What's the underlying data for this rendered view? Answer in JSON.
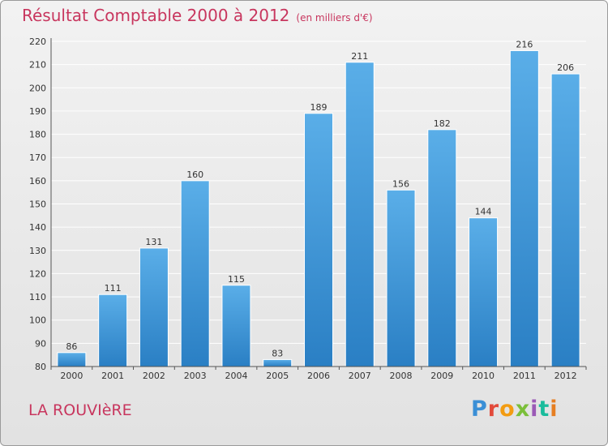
{
  "chart_data": {
    "type": "bar",
    "title": "Résultat Comptable 2000 à 2012",
    "unit_label": "(en milliers d'€)",
    "categories": [
      "2000",
      "2001",
      "2002",
      "2003",
      "2004",
      "2005",
      "2006",
      "2007",
      "2008",
      "2009",
      "2010",
      "2011",
      "2012"
    ],
    "values": [
      86,
      111,
      131,
      160,
      115,
      83,
      189,
      211,
      156,
      182,
      144,
      216,
      206
    ],
    "ylim": [
      80,
      220
    ],
    "yticks": [
      80,
      90,
      100,
      110,
      120,
      130,
      140,
      150,
      160,
      170,
      180,
      190,
      200,
      210,
      220
    ],
    "xlabel": "",
    "ylabel": "",
    "grid": true,
    "bar_color_top": "#5aaee8",
    "bar_color_bottom": "#2a7fc4"
  },
  "commune_name": "LA ROUVIèRE",
  "brand": {
    "letters": [
      "P",
      "r",
      "o",
      "x",
      "i",
      "t",
      "i"
    ]
  },
  "colors": {
    "title": "#c8365e",
    "grid": "#ffffff",
    "axis": "#555555"
  }
}
